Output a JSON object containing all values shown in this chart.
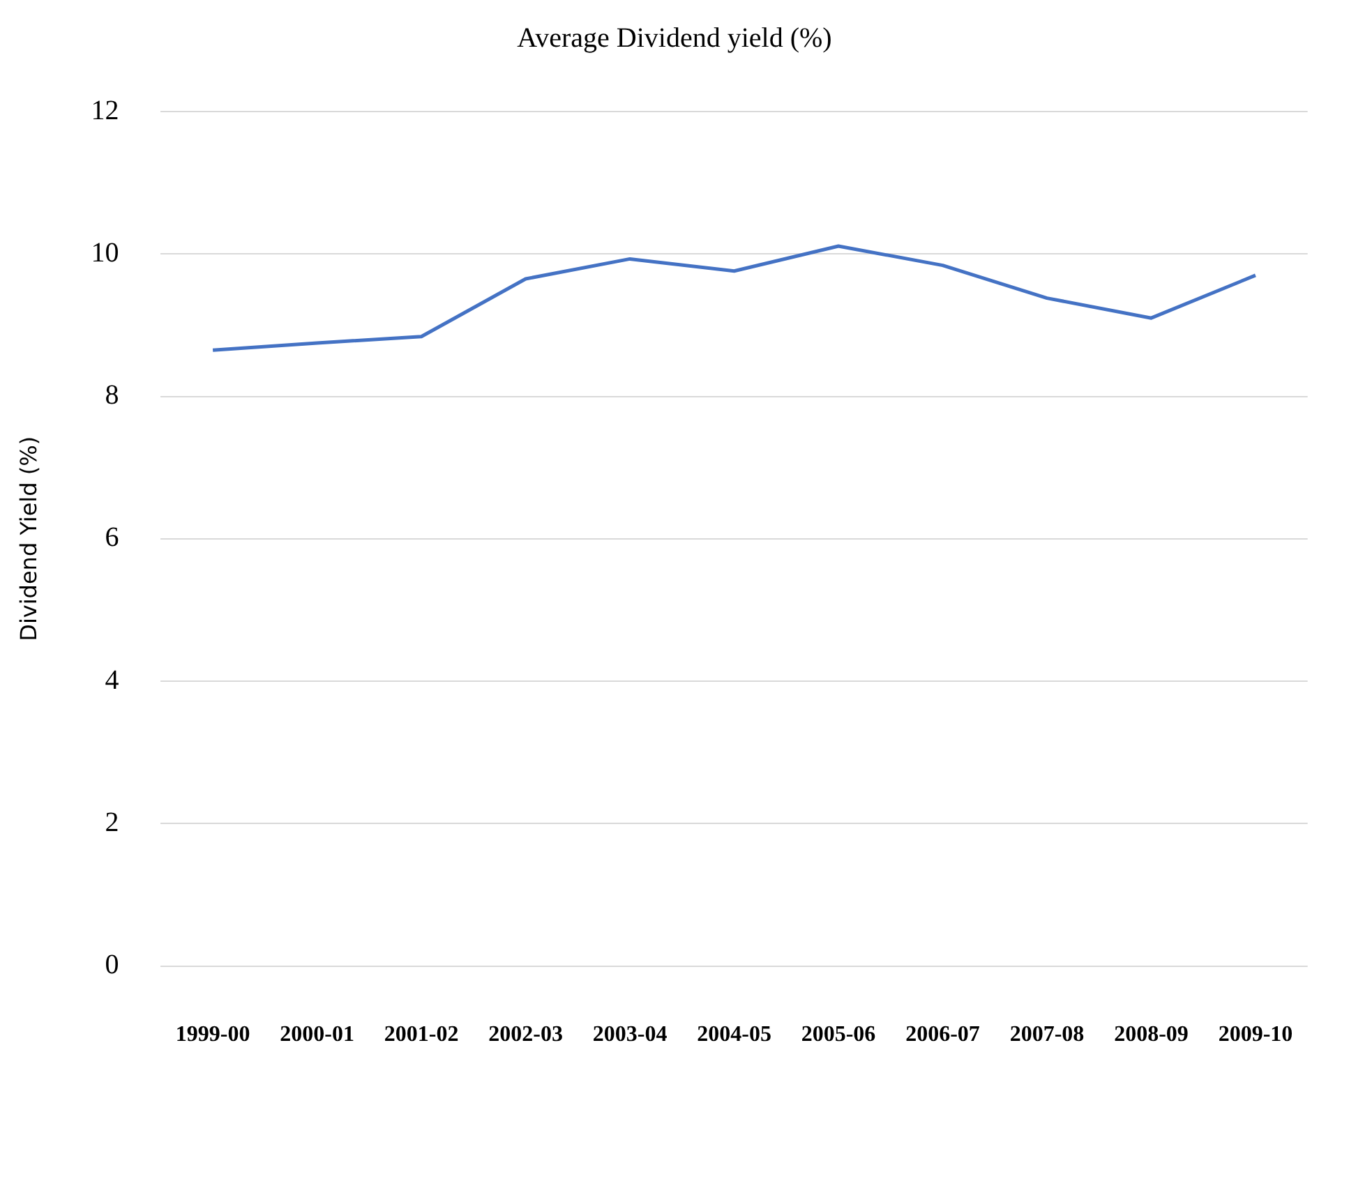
{
  "chart_data": {
    "type": "line",
    "title": "Average Dividend yield (%)",
    "ylabel": "Dividend Yield (%)",
    "categories": [
      "1999-00",
      "2000-01",
      "2001-02",
      "2002-03",
      "2003-04",
      "2004-05",
      "2005-06",
      "2006-07",
      "2007-08",
      "2008-09",
      "2009-10"
    ],
    "series": [
      {
        "color": "#4472c4",
        "values": [
          8.65,
          8.75,
          8.84,
          9.65,
          9.93,
          9.76,
          10.11,
          9.84,
          9.38,
          9.1,
          9.7
        ]
      }
    ],
    "ylim": [
      0,
      12
    ],
    "yticks": [
      0,
      2,
      4,
      6,
      8,
      10,
      12
    ],
    "grid": "y",
    "legend": false,
    "marker": "none",
    "line_style": "solid"
  }
}
